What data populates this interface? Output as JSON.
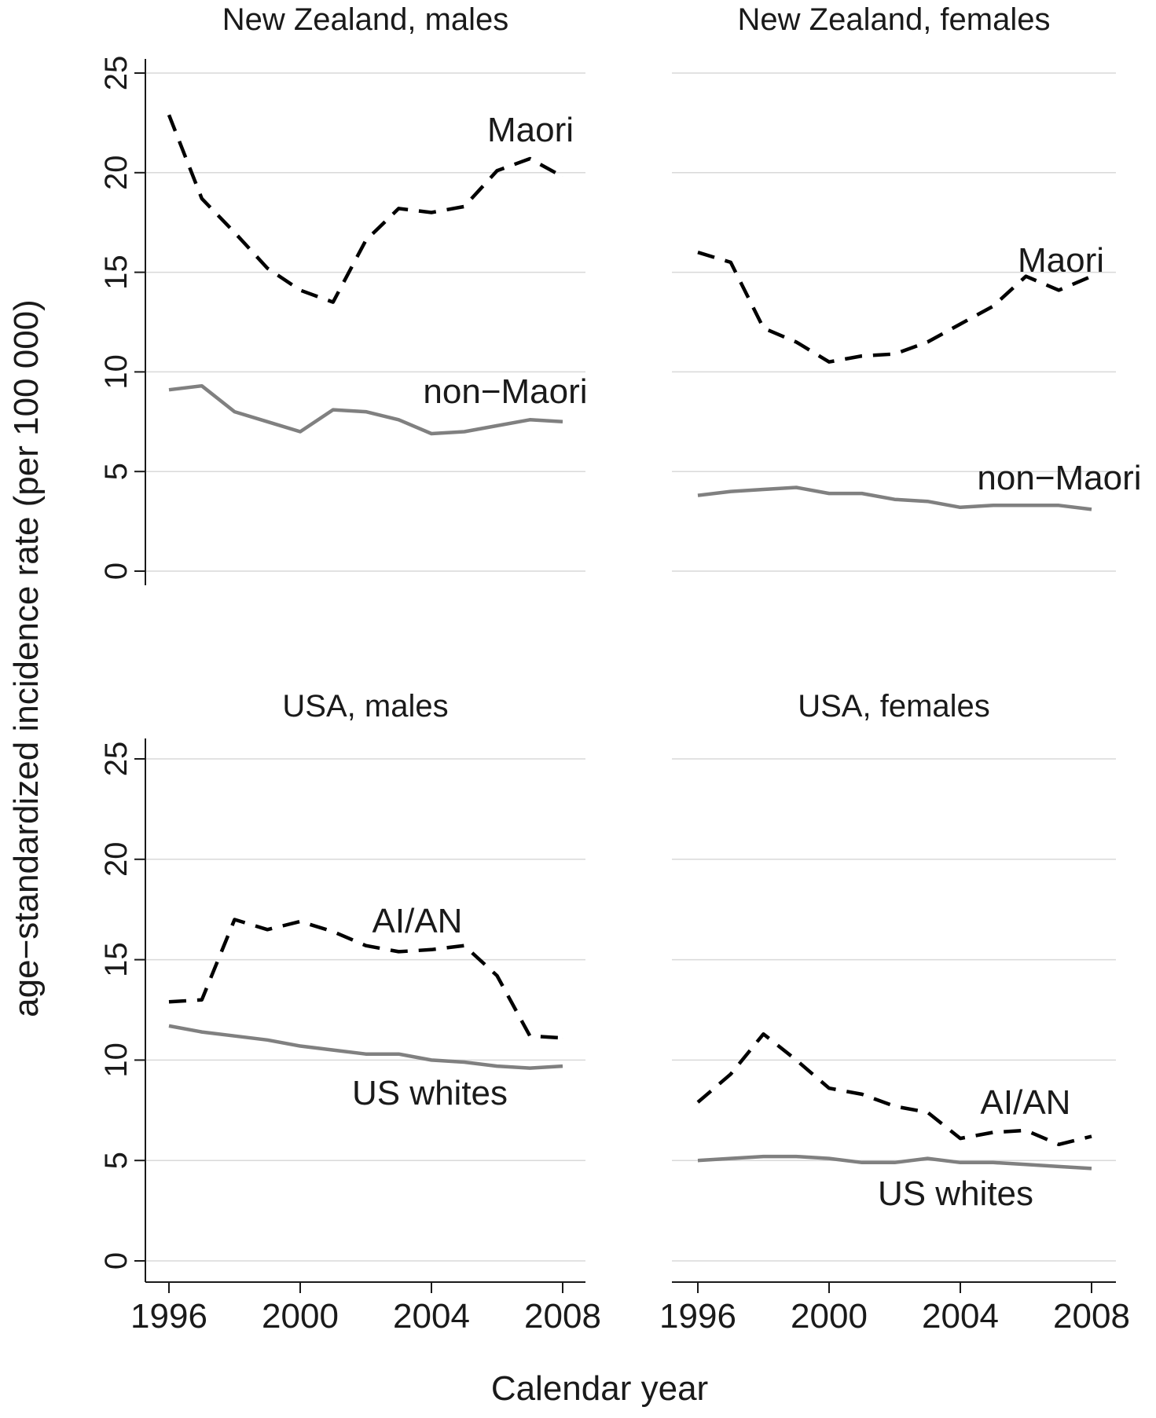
{
  "figure": {
    "xlabel": "Calendar year",
    "ylabel": "age−standardized incidence rate (per 100 000)"
  },
  "chart_data": [
    {
      "type": "line",
      "title": "New Zealand, males",
      "x": [
        1996,
        1997,
        1998,
        1999,
        2000,
        2001,
        2002,
        2003,
        2004,
        2005,
        2006,
        2007,
        2008
      ],
      "series": [
        {
          "name": "Maori",
          "style": "dashed",
          "color": "#000000",
          "values": [
            22.9,
            18.7,
            17.0,
            15.2,
            14.1,
            13.5,
            16.6,
            18.2,
            18.0,
            18.3,
            20.1,
            20.7,
            19.8
          ]
        },
        {
          "name": "non−Maori",
          "style": "solid",
          "color": "#808080",
          "values": [
            9.1,
            9.3,
            8.0,
            7.5,
            7.0,
            8.1,
            8.0,
            7.6,
            6.9,
            7.0,
            7.3,
            7.6,
            7.5
          ]
        }
      ],
      "xticks": [
        "1996",
        "2000",
        "2004",
        "2008"
      ],
      "yticks": [
        "0",
        "5",
        "10",
        "15",
        "20",
        "25"
      ],
      "ylim": [
        0,
        25
      ],
      "grid": true
    },
    {
      "type": "line",
      "title": "New Zealand, females",
      "x": [
        1996,
        1997,
        1998,
        1999,
        2000,
        2001,
        2002,
        2003,
        2004,
        2005,
        2006,
        2007,
        2008
      ],
      "series": [
        {
          "name": "Maori",
          "style": "dashed",
          "color": "#000000",
          "values": [
            16.0,
            15.5,
            12.2,
            11.5,
            10.5,
            10.8,
            10.9,
            11.5,
            12.4,
            13.3,
            14.8,
            14.1,
            14.8
          ]
        },
        {
          "name": "non−Maori",
          "style": "solid",
          "color": "#808080",
          "values": [
            3.8,
            4.0,
            4.1,
            4.2,
            3.9,
            3.9,
            3.6,
            3.5,
            3.2,
            3.3,
            3.3,
            3.3,
            3.1
          ]
        }
      ],
      "xticks": [
        "1996",
        "2000",
        "2004",
        "2008"
      ],
      "yticks": [
        "0",
        "5",
        "10",
        "15",
        "20",
        "25"
      ],
      "ylim": [
        0,
        25
      ],
      "grid": true
    },
    {
      "type": "line",
      "title": "USA, males",
      "x": [
        1996,
        1997,
        1998,
        1999,
        2000,
        2001,
        2002,
        2003,
        2004,
        2005,
        2006,
        2007,
        2008
      ],
      "series": [
        {
          "name": "AI/AN",
          "style": "dashed",
          "color": "#000000",
          "values": [
            12.9,
            13.0,
            17.0,
            16.5,
            16.9,
            16.4,
            15.7,
            15.4,
            15.5,
            15.7,
            14.2,
            11.2,
            11.1
          ]
        },
        {
          "name": "US whites",
          "style": "solid",
          "color": "#808080",
          "values": [
            11.7,
            11.4,
            11.2,
            11.0,
            10.7,
            10.5,
            10.3,
            10.3,
            10.0,
            9.9,
            9.7,
            9.6,
            9.7
          ]
        }
      ],
      "xticks": [
        "1996",
        "2000",
        "2004",
        "2008"
      ],
      "yticks": [
        "0",
        "5",
        "10",
        "15",
        "20",
        "25"
      ],
      "ylim": [
        0,
        25
      ],
      "grid": true
    },
    {
      "type": "line",
      "title": "USA, females",
      "x": [
        1996,
        1997,
        1998,
        1999,
        2000,
        2001,
        2002,
        2003,
        2004,
        2005,
        2006,
        2007,
        2008
      ],
      "series": [
        {
          "name": "AI/AN",
          "style": "dashed",
          "color": "#000000",
          "values": [
            7.9,
            9.3,
            11.3,
            10.0,
            8.6,
            8.3,
            7.7,
            7.4,
            6.1,
            6.4,
            6.5,
            5.8,
            6.2
          ]
        },
        {
          "name": "US whites",
          "style": "solid",
          "color": "#808080",
          "values": [
            5.0,
            5.1,
            5.2,
            5.2,
            5.1,
            4.9,
            4.9,
            5.1,
            4.9,
            4.9,
            4.8,
            4.7,
            4.6
          ]
        }
      ],
      "xticks": [
        "1996",
        "2000",
        "2004",
        "2008"
      ],
      "yticks": [
        "0",
        "5",
        "10",
        "15",
        "20",
        "25"
      ],
      "ylim": [
        0,
        25
      ],
      "grid": true
    }
  ]
}
